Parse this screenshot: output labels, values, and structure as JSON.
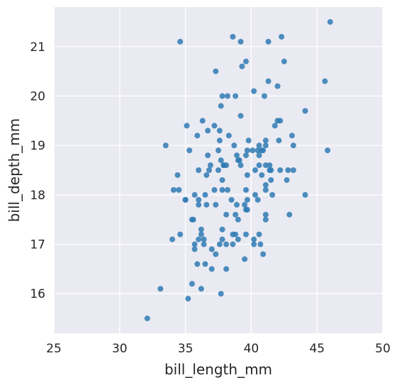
{
  "chart_data": {
    "type": "scatter",
    "title": "",
    "xlabel": "bill_length_mm",
    "ylabel": "bill_depth_mm",
    "xlim": [
      25,
      50
    ],
    "ylim": [
      15.2,
      21.8
    ],
    "xticks": [
      25,
      30,
      35,
      40,
      45,
      50
    ],
    "xtick_labels": [
      "25",
      "30",
      "35",
      "40",
      "45",
      "50"
    ],
    "yticks": [
      16,
      17,
      18,
      19,
      20,
      21
    ],
    "ytick_labels": [
      "16",
      "17",
      "18",
      "19",
      "20",
      "21"
    ],
    "grid": true,
    "legend": "none",
    "colors": {
      "background": "#eaeaf2",
      "grid": "#ffffff",
      "point": "#2f7ab4",
      "text": "#262626"
    },
    "series": [
      {
        "x": [
          39.1,
          40.3,
          36.7,
          39.3,
          38.9,
          39.2,
          34.1,
          42.0,
          37.8,
          37.8,
          41.1,
          38.6,
          34.6,
          36.6,
          38.7,
          42.5,
          34.4,
          46.0,
          37.8,
          37.7,
          35.9,
          38.2,
          38.8,
          35.3,
          40.6,
          40.5,
          37.9,
          40.5,
          39.5,
          37.2,
          39.5,
          40.9,
          36.4,
          39.2,
          38.8,
          42.2,
          37.6,
          39.8,
          36.5,
          40.8,
          36.0,
          44.1,
          37.0,
          39.6,
          41.1,
          37.5,
          36.0,
          42.3,
          39.6,
          40.1,
          35.0,
          42.0,
          34.5,
          41.4,
          39.0,
          40.6,
          36.5,
          37.6,
          35.7,
          41.3,
          37.6,
          41.1,
          36.4,
          41.6,
          35.5,
          41.1,
          35.9,
          41.8,
          33.5,
          39.7,
          39.6,
          45.8,
          35.5,
          42.8,
          40.9,
          37.2,
          36.2,
          42.1,
          34.6,
          42.9,
          36.7,
          35.1,
          37.3,
          41.3,
          36.3,
          36.9,
          38.3,
          38.9,
          35.7,
          41.1,
          34.0,
          39.6,
          36.2,
          40.8,
          38.1,
          40.3,
          33.1,
          43.2,
          35.0,
          41.0,
          37.7,
          37.8,
          37.9,
          39.7,
          38.6,
          38.2,
          38.1,
          43.2,
          38.1,
          45.6,
          39.7,
          42.2,
          39.6,
          42.7,
          38.6,
          37.3,
          35.7,
          41.1,
          36.2,
          37.7,
          40.2,
          41.4,
          35.2,
          40.6,
          38.8,
          41.5,
          39.0,
          44.1,
          38.5,
          43.1,
          36.8,
          37.5,
          38.1,
          41.1,
          35.6,
          40.2,
          37.0,
          39.7,
          40.2,
          40.6,
          32.1,
          40.7,
          37.3,
          39.0,
          39.2,
          36.6,
          36.0,
          37.8,
          36.0,
          41.5
        ],
        "y": [
          18.7,
          18.0,
          19.3,
          20.6,
          17.8,
          19.6,
          18.1,
          20.2,
          17.1,
          17.3,
          17.6,
          21.2,
          21.1,
          17.8,
          19.0,
          20.7,
          18.4,
          21.5,
          18.3,
          18.7,
          19.2,
          18.1,
          17.2,
          18.9,
          18.6,
          17.9,
          18.6,
          18.9,
          16.7,
          18.1,
          17.8,
          18.9,
          17.0,
          21.1,
          20.0,
          18.5,
          19.3,
          19.1,
          18.0,
          18.4,
          18.5,
          19.7,
          16.9,
          18.8,
          19.0,
          18.9,
          17.9,
          21.2,
          17.7,
          18.9,
          17.9,
          19.5,
          18.1,
          18.6,
          17.5,
          18.8,
          16.6,
          19.1,
          16.9,
          21.1,
          17.0,
          18.2,
          17.1,
          18.0,
          16.2,
          19.1,
          16.6,
          19.4,
          19.0,
          18.4,
          17.2,
          18.9,
          17.5,
          18.5,
          16.8,
          19.4,
          16.1,
          19.1,
          17.2,
          17.6,
          18.8,
          19.4,
          17.8,
          20.3,
          19.5,
          18.6,
          19.2,
          18.8,
          18.0,
          18.1,
          17.1,
          18.1,
          17.3,
          18.9,
          18.6,
          18.5,
          16.1,
          18.5,
          17.9,
          20.0,
          16.0,
          20.0,
          18.6,
          18.9,
          17.2,
          20.0,
          17.0,
          19.0,
          16.5,
          20.3,
          17.7,
          19.5,
          20.7,
          18.3,
          17.0,
          20.5,
          17.0,
          18.6,
          17.2,
          19.8,
          17.0,
          18.5,
          15.9,
          19.0,
          17.6,
          18.3,
          17.1,
          18.0,
          17.9,
          19.2,
          18.5,
          18.5,
          17.6,
          17.5,
          17.5,
          20.1,
          16.5,
          17.9,
          17.1,
          17.2,
          15.5,
          17.0,
          16.8,
          18.7,
          18.6,
          18.4,
          17.8,
          18.1,
          17.1,
          18.5
        ]
      }
    ]
  }
}
